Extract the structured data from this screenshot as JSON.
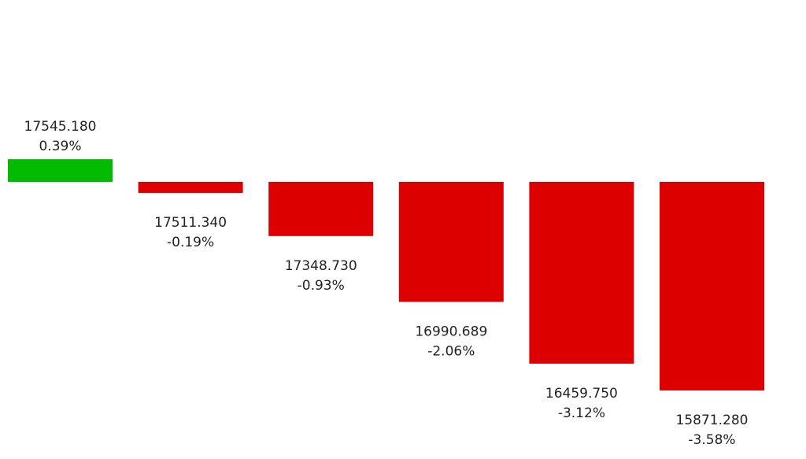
{
  "chart_data": {
    "type": "bar",
    "values": [
      0.39,
      -0.19,
      -0.93,
      -2.06,
      -3.12,
      -3.58
    ],
    "value_labels": [
      "0.39%",
      "-0.19%",
      "-0.93%",
      "-2.06%",
      "-3.12%",
      "-3.58%"
    ],
    "price_labels": [
      "17545.180",
      "17511.340",
      "17348.730",
      "16990.689",
      "16459.750",
      "15871.280"
    ],
    "positive_color": "#00bb00",
    "negative_color": "#dd0000"
  }
}
